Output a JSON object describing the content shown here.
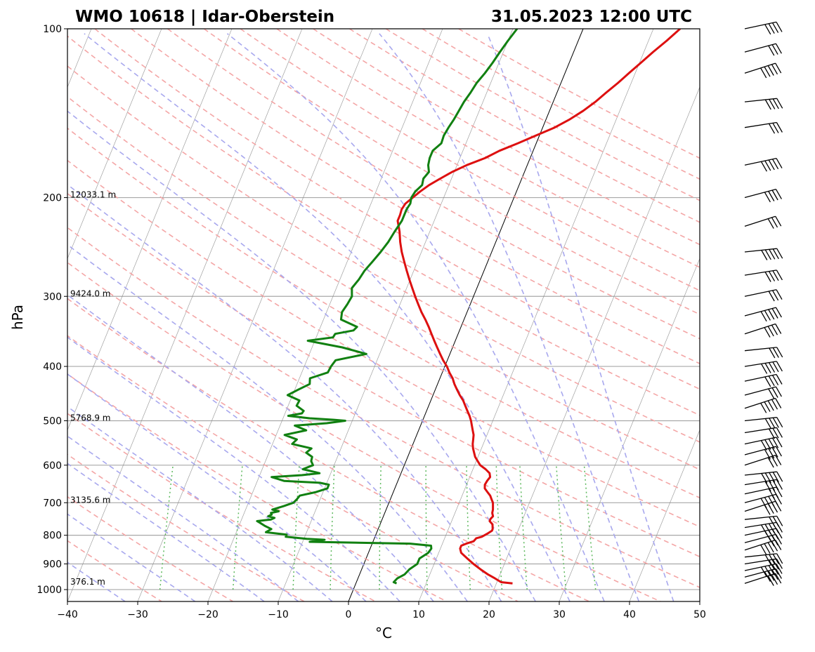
{
  "title_left": "WMO 10618 | Idar-Oberstein",
  "title_right": "31.05.2023 12:00 UTC",
  "chart_data": {
    "type": "line",
    "subtype": "skew-t log-p sounding",
    "xlabel": "°C",
    "ylabel": "hPa",
    "xlim": [
      -40,
      50
    ],
    "ylim": [
      1050,
      100
    ],
    "y_scale": "log",
    "x_ticks": [
      -40,
      -30,
      -20,
      -10,
      0,
      10,
      20,
      30,
      40,
      50
    ],
    "x_tick_labels": [
      "−40",
      "−30",
      "−20",
      "−10",
      "0",
      "10",
      "20",
      "30",
      "40",
      "50"
    ],
    "y_ticks": [
      1000,
      900,
      800,
      700,
      600,
      500,
      400,
      300,
      200,
      100
    ],
    "y_tick_labels": [
      "1000",
      "900",
      "800",
      "700",
      "600",
      "500",
      "400",
      "300",
      "200",
      "100"
    ],
    "grid": true,
    "height_labels": [
      {
        "p": 200,
        "text": "12033.1 m"
      },
      {
        "p": 300,
        "text": "9424.0 m"
      },
      {
        "p": 500,
        "text": "5768.9 m"
      },
      {
        "p": 700,
        "text": "3135.6 m"
      },
      {
        "p": 980,
        "text": "376.1 m"
      }
    ],
    "colors": {
      "temperature": "#dd1010",
      "dewpoint": "#118011",
      "dry_adiabats": "#f4a6a6",
      "moist_adiabats": "#a8a8ee",
      "mixing_ratio": "#5cb85c",
      "isotherms": "#888888",
      "zero_isotherm": "#000000"
    },
    "series": [
      {
        "name": "temperature",
        "pressure": [
          975,
          970,
          955,
          940,
          920,
          900,
          880,
          860,
          845,
          835,
          828,
          820,
          810,
          805,
          795,
          785,
          780,
          765,
          755,
          748,
          740,
          730,
          720,
          710,
          700,
          690,
          680,
          670,
          660,
          650,
          640,
          630,
          620,
          610,
          600,
          590,
          580,
          570,
          560,
          550,
          540,
          530,
          520,
          510,
          500,
          490,
          480,
          470,
          460,
          450,
          440,
          430,
          420,
          410,
          400,
          390,
          380,
          370,
          360,
          350,
          340,
          330,
          320,
          310,
          300,
          290,
          280,
          270,
          260,
          250,
          240,
          230,
          220,
          215,
          210,
          205,
          200,
          195,
          190,
          185,
          180,
          175,
          170,
          165,
          160,
          155,
          150,
          145,
          140,
          135,
          130,
          125,
          120,
          115,
          110,
          105,
          100
        ],
        "temperature": [
          22.3,
          20.6,
          19.5,
          18.3,
          16.9,
          15.6,
          14.4,
          13.2,
          12.8,
          12.8,
          13.4,
          14.3,
          14.5,
          15.2,
          15.8,
          16.3,
          16.3,
          16.0,
          15.4,
          15.4,
          15.6,
          15.3,
          15.2,
          15.0,
          14.8,
          14.4,
          14.0,
          13.4,
          12.8,
          12.6,
          12.7,
          12.9,
          12.6,
          11.8,
          10.8,
          10.2,
          9.6,
          9.2,
          8.8,
          8.5,
          8.3,
          8.1,
          7.7,
          7.3,
          6.9,
          6.4,
          5.8,
          5.2,
          4.6,
          3.8,
          3.1,
          2.4,
          1.8,
          1.0,
          0.3,
          -0.6,
          -1.4,
          -2.2,
          -3.0,
          -3.8,
          -4.6,
          -5.5,
          -6.5,
          -7.4,
          -8.3,
          -9.2,
          -10.1,
          -11.0,
          -11.9,
          -12.8,
          -13.6,
          -14.3,
          -15.2,
          -15.2,
          -15.3,
          -15.1,
          -14.4,
          -13.7,
          -12.8,
          -11.6,
          -10.3,
          -8.6,
          -6.4,
          -4.8,
          -2.6,
          -0.5,
          1.7,
          3.4,
          4.8,
          6.0,
          7.0,
          8.1,
          9.1,
          10.2,
          11.3,
          12.6,
          13.8
        ]
      },
      {
        "name": "dewpoint",
        "pressure": [
          975,
          970,
          955,
          940,
          920,
          900,
          880,
          860,
          845,
          835,
          828,
          822,
          815,
          812,
          805,
          798,
          790,
          780,
          770,
          760,
          755,
          750,
          745,
          740,
          735,
          730,
          725,
          720,
          710,
          700,
          690,
          680,
          670,
          660,
          655,
          650,
          645,
          640,
          630,
          625,
          620,
          610,
          600,
          590,
          580,
          570,
          560,
          550,
          540,
          530,
          520,
          510,
          505,
          500,
          498,
          495,
          490,
          485,
          480,
          470,
          460,
          450,
          440,
          430,
          420,
          410,
          400,
          390,
          380,
          370,
          360,
          355,
          350,
          345,
          340,
          330,
          320,
          310,
          300,
          290,
          280,
          270,
          260,
          250,
          240,
          230,
          220,
          210,
          205,
          200,
          195,
          190,
          185,
          180,
          175,
          170,
          165,
          160,
          155,
          150,
          145,
          140,
          135,
          130,
          125,
          120,
          115,
          110,
          105,
          100
        ],
        "dewpoint": [
          5.8,
          5.3,
          5.6,
          6.4,
          6.8,
          7.6,
          7.6,
          8.5,
          8.7,
          8.5,
          5.4,
          -9.0,
          -7.0,
          -9.6,
          -12.7,
          -12.7,
          -15.8,
          -15.2,
          -16.3,
          -17.2,
          -17.7,
          -15.8,
          -15.4,
          -16.4,
          -16.0,
          -16.2,
          -15.2,
          -16.2,
          -14.8,
          -13.6,
          -13.3,
          -13.1,
          -11.0,
          -9.6,
          -9.6,
          -9.6,
          -11.0,
          -16.2,
          -18.2,
          -14.0,
          -11.6,
          -14.2,
          -13.0,
          -13.5,
          -13.6,
          -14.7,
          -14.2,
          -17.2,
          -16.8,
          -18.8,
          -16.0,
          -17.9,
          -13.5,
          -11.0,
          -12.7,
          -16.2,
          -19.4,
          -17.6,
          -17.5,
          -18.8,
          -18.7,
          -20.7,
          -19.5,
          -18.2,
          -18.5,
          -16.3,
          -16.2,
          -15.9,
          -11.9,
          -15.7,
          -21.0,
          -17.6,
          -17.5,
          -15.1,
          -14.8,
          -17.5,
          -17.8,
          -17.5,
          -17.3,
          -17.8,
          -17.3,
          -17.0,
          -16.4,
          -15.8,
          -15.3,
          -15.0,
          -14.6,
          -14.6,
          -14.4,
          -14.6,
          -14.4,
          -13.8,
          -14.0,
          -13.6,
          -14.1,
          -14.3,
          -14.3,
          -13.5,
          -13.6,
          -13.4,
          -13.1,
          -12.9,
          -12.7,
          -12.3,
          -12.0,
          -11.4,
          -10.9,
          -10.5,
          -10.0,
          -9.4
        ]
      }
    ],
    "wind_barbs_pressure": [
      975,
      950,
      925,
      900,
      875,
      850,
      825,
      800,
      775,
      750,
      725,
      700,
      675,
      650,
      625,
      600,
      575,
      550,
      525,
      500,
      475,
      450,
      425,
      400,
      375,
      350,
      325,
      300,
      275,
      250,
      225,
      200,
      175,
      150,
      135,
      120,
      110,
      100
    ]
  }
}
